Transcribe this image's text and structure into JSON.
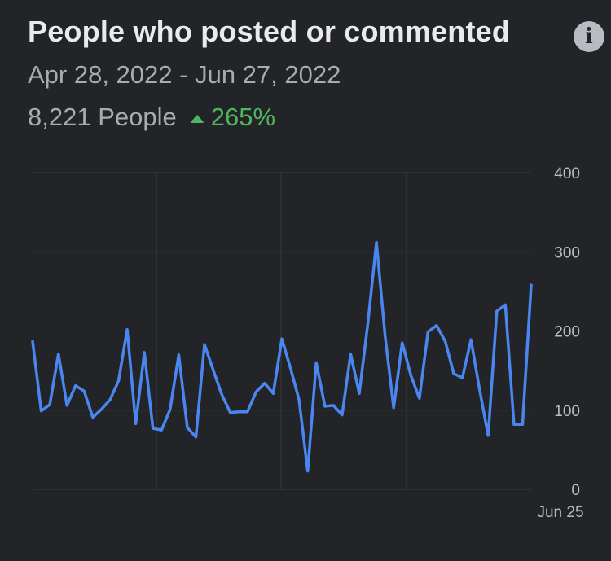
{
  "header": {
    "title": "People who posted or commented",
    "info_icon": "info-icon",
    "date_range": "Apr 28, 2022 - Jun 27, 2022",
    "people_count": "8,221 People",
    "change": "265%",
    "change_color": "#4fb55e"
  },
  "chart_data": {
    "type": "line",
    "title": "People who posted or commented",
    "xlabel": "",
    "ylabel": "",
    "ylim": [
      0,
      400
    ],
    "yticks": [
      0,
      100,
      200,
      300,
      400
    ],
    "x_tick_labels": [
      "Jun 25"
    ],
    "grid": true,
    "line_color": "#4a86f0",
    "series": [
      {
        "values": [
          187,
          99,
          107,
          171,
          106,
          131,
          124,
          91,
          101,
          113,
          137,
          202,
          83,
          173,
          77,
          75,
          101,
          170,
          78,
          66,
          183,
          151,
          120,
          97,
          98,
          98,
          123,
          134,
          121,
          190,
          153,
          113,
          23,
          160,
          105,
          106,
          94,
          171,
          121,
          209,
          312,
          195,
          103,
          185,
          144,
          115,
          199,
          207,
          187,
          146,
          141,
          189,
          126,
          68,
          225,
          233,
          82,
          82,
          258
        ]
      }
    ]
  }
}
